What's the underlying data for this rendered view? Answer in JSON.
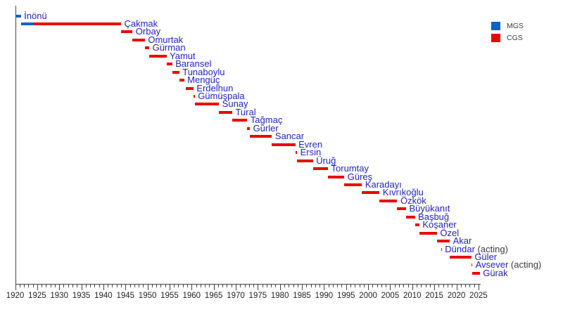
{
  "chart_data": {
    "type": "bar",
    "subtype": "gantt-timeline",
    "title": "",
    "description": "Timeline of tenures of Turkish chiefs of general staff, one horizontal bar per office holder, colored by role",
    "x_axis": {
      "min": 1920,
      "max": 2025,
      "major_tick_step": 5,
      "minor_tick_step": 1,
      "tick_labels": [
        "1920",
        "1925",
        "1930",
        "1935",
        "1940",
        "1945",
        "1950",
        "1955",
        "1960",
        "1965",
        "1970",
        "1975",
        "1980",
        "1985",
        "1990",
        "1995",
        "2000",
        "2005",
        "2010",
        "2015",
        "2020",
        "2025"
      ]
    },
    "legend": {
      "position": "top-right",
      "items": [
        {
          "label": "MGS",
          "color": "#0d63c5"
        },
        {
          "label": "CGS",
          "color": "#ee0000"
        }
      ]
    },
    "rows": [
      {
        "name": "İnönü",
        "suffix": "",
        "segments": [
          {
            "role": "MGS",
            "start": 1920.1,
            "end": 1921.3
          }
        ]
      },
      {
        "name": "Çakmak",
        "suffix": "",
        "segments": [
          {
            "role": "MGS",
            "start": 1921.3,
            "end": 1924.2
          },
          {
            "role": "CGS",
            "start": 1924.2,
            "end": 1944.0
          }
        ]
      },
      {
        "name": "Orbay",
        "suffix": "",
        "segments": [
          {
            "role": "CGS",
            "start": 1944.0,
            "end": 1946.6
          }
        ]
      },
      {
        "name": "Omurtak",
        "suffix": "",
        "segments": [
          {
            "role": "CGS",
            "start": 1946.6,
            "end": 1949.4
          }
        ]
      },
      {
        "name": "Gürman",
        "suffix": "",
        "segments": [
          {
            "role": "CGS",
            "start": 1949.4,
            "end": 1950.4
          }
        ]
      },
      {
        "name": "Yamut",
        "suffix": "",
        "segments": [
          {
            "role": "CGS",
            "start": 1950.4,
            "end": 1954.3
          }
        ]
      },
      {
        "name": "Baransel",
        "suffix": "",
        "segments": [
          {
            "role": "CGS",
            "start": 1954.3,
            "end": 1955.6
          }
        ]
      },
      {
        "name": "Tunaboylu",
        "suffix": "",
        "segments": [
          {
            "role": "CGS",
            "start": 1955.6,
            "end": 1957.2
          }
        ]
      },
      {
        "name": "Mengüç",
        "suffix": "",
        "segments": [
          {
            "role": "CGS",
            "start": 1957.2,
            "end": 1958.3
          }
        ]
      },
      {
        "name": "Erdelhun",
        "suffix": "",
        "segments": [
          {
            "role": "CGS",
            "start": 1958.6,
            "end": 1960.4
          }
        ]
      },
      {
        "name": "Gümüşpala",
        "suffix": "",
        "segments": [
          {
            "role": "CGS",
            "start": 1960.4,
            "end": 1960.7
          }
        ]
      },
      {
        "name": "Sunay",
        "suffix": "",
        "segments": [
          {
            "role": "CGS",
            "start": 1960.7,
            "end": 1966.2
          }
        ]
      },
      {
        "name": "Tural",
        "suffix": "",
        "segments": [
          {
            "role": "CGS",
            "start": 1966.2,
            "end": 1969.2
          }
        ]
      },
      {
        "name": "Tağmaç",
        "suffix": "",
        "segments": [
          {
            "role": "CGS",
            "start": 1969.2,
            "end": 1972.6
          }
        ]
      },
      {
        "name": "Gürler",
        "suffix": "",
        "segments": [
          {
            "role": "CGS",
            "start": 1972.6,
            "end": 1973.2
          }
        ]
      },
      {
        "name": "Sancar",
        "suffix": "",
        "segments": [
          {
            "role": "CGS",
            "start": 1973.2,
            "end": 1978.2
          }
        ]
      },
      {
        "name": "Evren",
        "suffix": "",
        "segments": [
          {
            "role": "CGS",
            "start": 1978.2,
            "end": 1983.5
          }
        ]
      },
      {
        "name": "Ersin",
        "suffix": "",
        "segments": [
          {
            "role": "CGS",
            "start": 1983.5,
            "end": 1983.9
          }
        ]
      },
      {
        "name": "Üruğ",
        "suffix": "",
        "segments": [
          {
            "role": "CGS",
            "start": 1983.9,
            "end": 1987.5
          }
        ]
      },
      {
        "name": "Torumtay",
        "suffix": "",
        "segments": [
          {
            "role": "CGS",
            "start": 1987.5,
            "end": 1990.9
          }
        ]
      },
      {
        "name": "Güreş",
        "suffix": "",
        "segments": [
          {
            "role": "CGS",
            "start": 1990.9,
            "end": 1994.6
          }
        ]
      },
      {
        "name": "Karadayı",
        "suffix": "",
        "segments": [
          {
            "role": "CGS",
            "start": 1994.6,
            "end": 1998.6
          }
        ]
      },
      {
        "name": "Kıvrıkoğlu",
        "suffix": "",
        "segments": [
          {
            "role": "CGS",
            "start": 1998.6,
            "end": 2002.6
          }
        ]
      },
      {
        "name": "Özkök",
        "suffix": "",
        "segments": [
          {
            "role": "CGS",
            "start": 2002.6,
            "end": 2006.6
          }
        ]
      },
      {
        "name": "Büyükanıt",
        "suffix": "",
        "segments": [
          {
            "role": "CGS",
            "start": 2006.6,
            "end": 2008.6
          }
        ]
      },
      {
        "name": "Başbuğ",
        "suffix": "",
        "segments": [
          {
            "role": "CGS",
            "start": 2008.6,
            "end": 2010.6
          }
        ]
      },
      {
        "name": "Koşaner",
        "suffix": "",
        "segments": [
          {
            "role": "CGS",
            "start": 2010.6,
            "end": 2011.6
          }
        ]
      },
      {
        "name": "Özel",
        "suffix": "",
        "segments": [
          {
            "role": "CGS",
            "start": 2011.6,
            "end": 2015.6
          }
        ]
      },
      {
        "name": "Akar",
        "suffix": "",
        "segments": [
          {
            "role": "CGS",
            "start": 2015.6,
            "end": 2018.5
          }
        ]
      },
      {
        "name": "Dündar",
        "suffix": " (acting)",
        "segments": [
          {
            "role": "CGS",
            "start": 2016.5,
            "end": 2016.7
          }
        ]
      },
      {
        "name": "Güler",
        "suffix": "",
        "segments": [
          {
            "role": "CGS",
            "start": 2018.5,
            "end": 2023.4
          }
        ]
      },
      {
        "name": "Avsever",
        "suffix": " (acting)",
        "segments": [
          {
            "role": "CGS",
            "start": 2023.4,
            "end": 2023.6
          }
        ]
      },
      {
        "name": "Gürak",
        "suffix": "",
        "segments": [
          {
            "role": "CGS",
            "start": 2023.6,
            "end": 2025.3
          }
        ]
      }
    ]
  },
  "colors": {
    "mgs_bar": "#0d63c5",
    "cgs_bar": "#ee0000",
    "name_label": "#2222bb",
    "acting_label": "#3a3a3a",
    "axis": "#444444",
    "tick_label": "#222222",
    "background": "#ffffff"
  }
}
